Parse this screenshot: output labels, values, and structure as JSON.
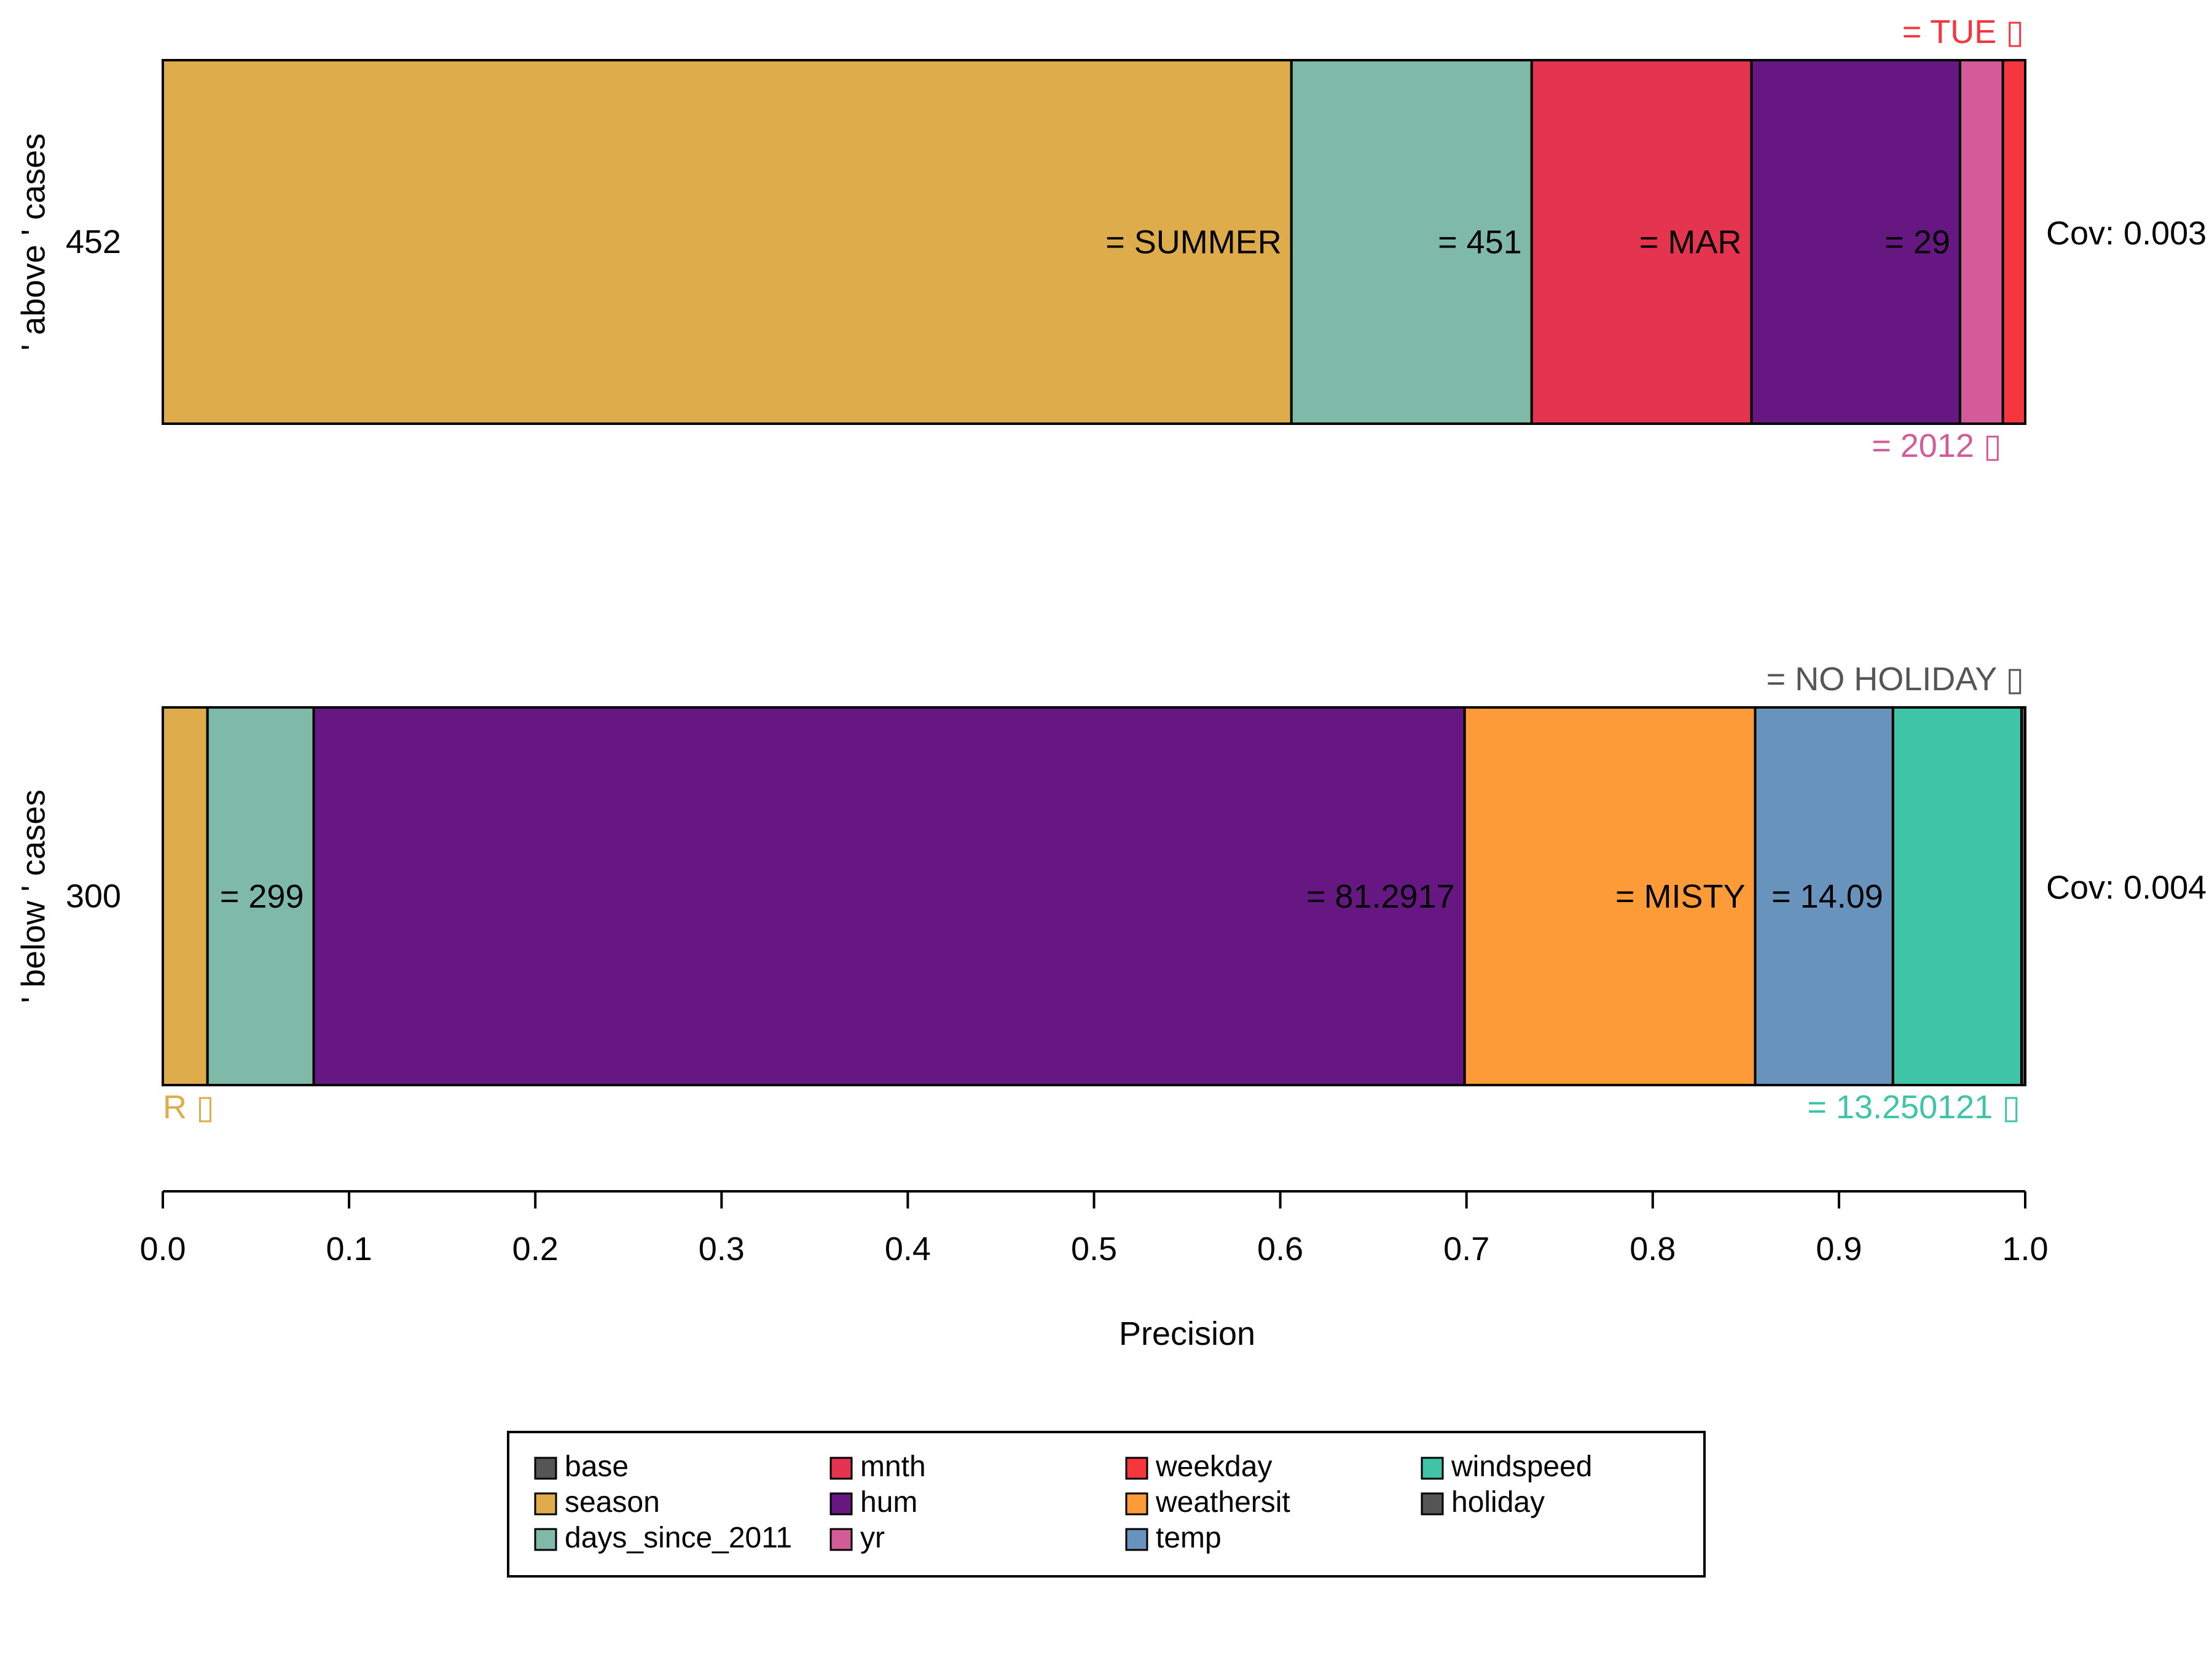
{
  "chart_data": {
    "type": "bar",
    "orientation": "horizontal",
    "stacked": true,
    "xlabel": "Precision",
    "xlim": [
      0,
      1
    ],
    "xticks": [
      "0.0",
      "0.1",
      "0.2",
      "0.3",
      "0.4",
      "0.5",
      "0.6",
      "0.7",
      "0.8",
      "0.9",
      "1.0"
    ],
    "legend": {
      "placement": "bottom",
      "items": [
        {
          "name": "base",
          "color": "#555555"
        },
        {
          "name": "season",
          "color": "#DEAC4A"
        },
        {
          "name": "days_since_2011",
          "color": "#7EBAA7"
        },
        {
          "name": "mnth",
          "color": "#E4344F"
        },
        {
          "name": "hum",
          "color": "#671782"
        },
        {
          "name": "yr",
          "color": "#D35B97"
        },
        {
          "name": "weekday",
          "color": "#F5363F"
        },
        {
          "name": "weathersit",
          "color": "#FC9B38"
        },
        {
          "name": "temp",
          "color": "#6893BD"
        },
        {
          "name": "windspeed",
          "color": "#3FC4A8"
        },
        {
          "name": "holiday",
          "color": "#555555"
        }
      ]
    },
    "rows": [
      {
        "group_label": "' above ' cases",
        "case_label": "452",
        "coverage": "Cov: 0.003",
        "segments": [
          {
            "feature": "season",
            "start": 0.0,
            "end": 0.606,
            "label": "= SUMMER",
            "label_pos": "inside"
          },
          {
            "feature": "days_since_2011",
            "start": 0.606,
            "end": 0.735,
            "label": "= 451",
            "label_pos": "inside"
          },
          {
            "feature": "mnth",
            "start": 0.735,
            "end": 0.853,
            "label": "= MAR",
            "label_pos": "inside"
          },
          {
            "feature": "hum",
            "start": 0.853,
            "end": 0.965,
            "label": "= 29",
            "label_pos": "inside"
          },
          {
            "feature": "yr",
            "start": 0.965,
            "end": 0.988,
            "label": "= 2012 ▯",
            "label_pos": "below"
          },
          {
            "feature": "weekday",
            "start": 0.988,
            "end": 1.0,
            "label": "= TUE ▯",
            "label_pos": "above"
          }
        ]
      },
      {
        "group_label": "' below ' cases",
        "case_label": "300",
        "coverage": "Cov: 0.004",
        "segments": [
          {
            "feature": "season",
            "start": 0.0,
            "end": 0.024,
            "label": "R ▯",
            "label_pos": "below-left"
          },
          {
            "feature": "days_since_2011",
            "start": 0.024,
            "end": 0.081,
            "label": "= 299",
            "label_pos": "inside"
          },
          {
            "feature": "hum",
            "start": 0.081,
            "end": 0.699,
            "label": "= 81.2917",
            "label_pos": "inside"
          },
          {
            "feature": "weathersit",
            "start": 0.699,
            "end": 0.855,
            "label": "= MISTY",
            "label_pos": "inside"
          },
          {
            "feature": "temp",
            "start": 0.855,
            "end": 0.929,
            "label": "= 14.09",
            "label_pos": "inside"
          },
          {
            "feature": "windspeed",
            "start": 0.929,
            "end": 0.998,
            "label": "= 13.250121 ▯",
            "label_pos": "below"
          },
          {
            "feature": "holiday",
            "start": 0.998,
            "end": 1.0,
            "label": "= NO HOLIDAY ▯",
            "label_pos": "above"
          }
        ]
      }
    ]
  }
}
